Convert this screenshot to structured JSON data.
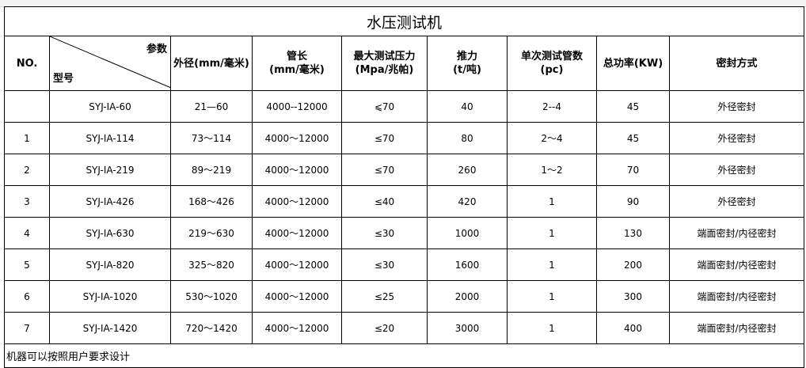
{
  "title": "水压测试机",
  "header": {
    "no": "NO.",
    "param_label": "参数",
    "model_label": "型号",
    "columns": [
      "外径(mm/毫米)",
      "管长\n(mm/毫米)",
      "最大测试压力\n(Mpa/兆帕)",
      "推力\n(t/吨)",
      "单次测试管数\n(pc)",
      "总功率(KW)",
      "密封方式"
    ]
  },
  "rows": [
    [
      "",
      "SYJ-ⅠA-60",
      "21—60",
      "4000--12000",
      "⩽70",
      "40",
      "2--4",
      "45",
      "外径密封"
    ],
    [
      "1",
      "SYJ-ⅠA-114",
      "73～114",
      "4000～12000",
      "≤70",
      "80",
      "2～4",
      "45",
      "外径密封"
    ],
    [
      "2",
      "SYJ-ⅠA-219",
      "89～219",
      "4000～12000",
      "≤70",
      "260",
      "1～2",
      "70",
      "外径密封"
    ],
    [
      "3",
      "SYJ-ⅠA-426",
      "168～426",
      "4000～12000",
      "≤40",
      "420",
      "1",
      "90",
      "外径密封"
    ],
    [
      "4",
      "SYJ-ⅠA-630",
      "219～630",
      "4000～12000",
      "≤30",
      "1000",
      "1",
      "130",
      "端面密封/内径密封"
    ],
    [
      "5",
      "SYJ-ⅠA-820",
      "325～820",
      "4000～12000",
      "≤30",
      "1600",
      "1",
      "200",
      "端面密封/内径密封"
    ],
    [
      "6",
      "SYJ-ⅠA-1020",
      "530～1020",
      "4000～12000",
      "≤25",
      "2000",
      "1",
      "300",
      "端面密封/内径密封"
    ],
    [
      "7",
      "SYJ-ⅠA-1420",
      "720～1420",
      "4000～12000",
      "≤20",
      "3000",
      "1",
      "400",
      "端面密封/内径密封"
    ]
  ],
  "footer": "机器可以按照用户要求设计"
}
